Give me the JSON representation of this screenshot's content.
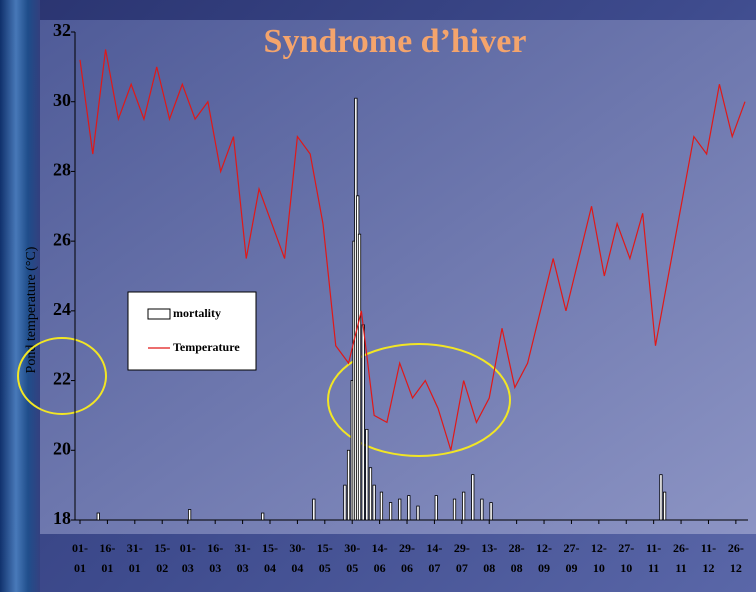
{
  "chart_data": {
    "type": "line",
    "title": "Syndrome d’hiver",
    "y_label": "Pond temperature (°C)",
    "xlim": [
      0,
      364
    ],
    "xticks": [
      {
        "value": 0,
        "label": "01-\n01"
      },
      {
        "value": 15,
        "label": "16-\n01"
      },
      {
        "value": 30,
        "label": "31-\n01"
      },
      {
        "value": 45,
        "label": "15-\n02"
      },
      {
        "value": 59,
        "label": "01-\n03"
      },
      {
        "value": 74,
        "label": "16-\n03"
      },
      {
        "value": 89,
        "label": "31-\n03"
      },
      {
        "value": 104,
        "label": "15-\n04"
      },
      {
        "value": 119,
        "label": "30-\n04"
      },
      {
        "value": 134,
        "label": "15-\n05"
      },
      {
        "value": 149,
        "label": "30-\n05"
      },
      {
        "value": 164,
        "label": "14-\n06"
      },
      {
        "value": 179,
        "label": "29-\n06"
      },
      {
        "value": 194,
        "label": "14-\n07"
      },
      {
        "value": 209,
        "label": "29-\n07"
      },
      {
        "value": 224,
        "label": "13-\n08"
      },
      {
        "value": 239,
        "label": "28-\n08"
      },
      {
        "value": 254,
        "label": "12-\n09"
      },
      {
        "value": 269,
        "label": "27-\n09"
      },
      {
        "value": 284,
        "label": "12-\n10"
      },
      {
        "value": 299,
        "label": "27-\n10"
      },
      {
        "value": 314,
        "label": "11-\n11"
      },
      {
        "value": 329,
        "label": "26-\n11"
      },
      {
        "value": 344,
        "label": "11-\n12"
      },
      {
        "value": 359,
        "label": "26-\n12"
      }
    ],
    "ylim": [
      18,
      32
    ],
    "yticks": [
      18,
      20,
      22,
      24,
      26,
      28,
      30,
      32
    ],
    "grid": false,
    "legend_position": "left",
    "series": [
      {
        "name": "mortality",
        "type": "bar",
        "color": "#000000",
        "x": [
          10,
          60,
          100,
          128,
          145,
          147,
          149,
          150,
          151,
          152,
          153,
          155,
          157,
          159,
          161,
          165,
          170,
          175,
          180,
          185,
          195,
          205,
          210,
          215,
          220,
          225,
          318,
          320
        ],
        "values": [
          18.2,
          18.3,
          18.2,
          18.6,
          19,
          20,
          22,
          26,
          30.1,
          27.3,
          26.2,
          23.6,
          20.6,
          19.5,
          19,
          18.8,
          18.5,
          18.6,
          18.7,
          18.4,
          18.7,
          18.6,
          18.8,
          19.3,
          18.6,
          18.5,
          19.3,
          18.8
        ]
      },
      {
        "name": "Temperature",
        "type": "line",
        "color": "#e01818",
        "x": [
          0,
          7,
          14,
          21,
          28,
          35,
          42,
          49,
          56,
          63,
          70,
          77,
          84,
          91,
          98,
          105,
          112,
          119,
          126,
          133,
          140,
          147,
          154,
          161,
          168,
          175,
          182,
          189,
          196,
          203,
          210,
          217,
          224,
          231,
          238,
          245,
          252,
          259,
          266,
          273,
          280,
          287,
          294,
          301,
          308,
          315,
          322,
          329,
          336,
          343,
          350,
          357,
          364
        ],
        "values": [
          31.2,
          28.5,
          31.5,
          29.5,
          30.5,
          29.5,
          31,
          29.5,
          30.5,
          29.5,
          30,
          28,
          29,
          25.5,
          27.5,
          26.5,
          25.5,
          29,
          28.5,
          26.5,
          23,
          22.5,
          24,
          21,
          20.8,
          22.5,
          21.5,
          22,
          21.2,
          20,
          22,
          20.8,
          21.5,
          23.5,
          21.8,
          22.5,
          24,
          25.5,
          24,
          25.5,
          27,
          25,
          26.5,
          25.5,
          26.8,
          23,
          25,
          27,
          29,
          28.5,
          30.5,
          29,
          30
        ]
      }
    ]
  }
}
